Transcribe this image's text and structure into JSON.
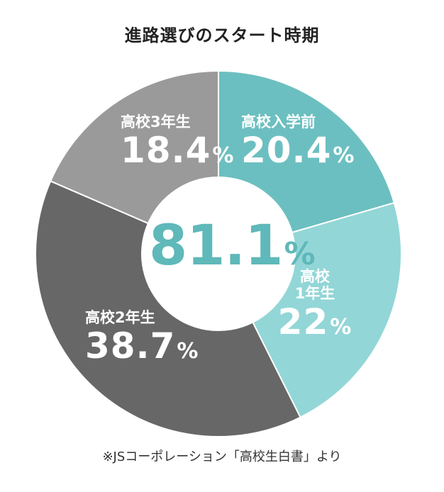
{
  "chart_data": {
    "type": "pie",
    "title": "進路選びのスタート時期",
    "center_label": "81.1",
    "center_unit": "%",
    "categories": [
      "高校入学前",
      "高校1年生",
      "高校2年生",
      "高校3年生"
    ],
    "category_lines": [
      [
        "高校入学前"
      ],
      [
        "高校",
        "1年生"
      ],
      [
        "高校2年生"
      ],
      [
        "高校3年生"
      ]
    ],
    "values": [
      20.4,
      22,
      38.7,
      18.4
    ],
    "value_labels": [
      "20.4",
      "22",
      "38.7",
      "18.4"
    ],
    "unit": "%",
    "colors": [
      "#6cbfc0",
      "#93d6d7",
      "#676767",
      "#9a9a9a"
    ],
    "donut": true,
    "start_angle_deg": 0,
    "direction": "clockwise"
  },
  "source_note": "※JSコーポレーション「高校生白書」より"
}
